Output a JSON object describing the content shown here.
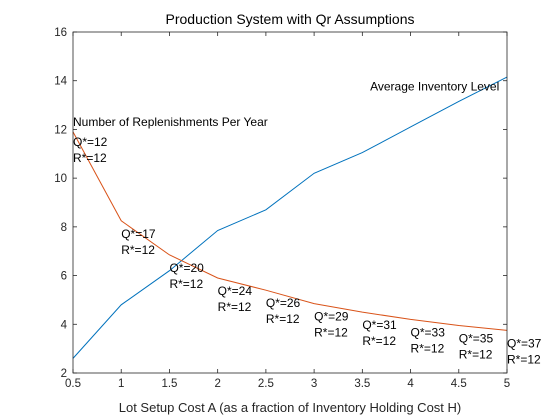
{
  "chart_data": {
    "type": "line",
    "title": "Production System with Qr Assumptions",
    "xlabel": "Lot Setup Cost A (as a fraction of Inventory Holding Cost H)",
    "ylabel": "",
    "xlim": [
      0.5,
      5
    ],
    "ylim": [
      2,
      16
    ],
    "xticks": [
      "0.5",
      "1",
      "1.5",
      "2",
      "2.5",
      "3",
      "3.5",
      "4",
      "4.5",
      "5"
    ],
    "yticks": [
      "2",
      "4",
      "6",
      "8",
      "10",
      "12",
      "14",
      "16"
    ],
    "grid": false,
    "x": [
      0.5,
      1,
      1.5,
      2,
      2.5,
      3,
      3.5,
      4,
      4.5,
      5
    ],
    "series": [
      {
        "name": "Average Inventory Level",
        "color": "#0072BD",
        "values": [
          2.6,
          4.8,
          6.2,
          7.85,
          8.7,
          10.2,
          11.05,
          12.1,
          13.15,
          14.15
        ]
      },
      {
        "name": "Number of Replenishments Per Year",
        "color": "#D95319",
        "values": [
          11.9,
          8.25,
          6.85,
          5.9,
          5.4,
          4.85,
          4.5,
          4.2,
          3.95,
          3.75
        ]
      }
    ],
    "annotations": [
      {
        "x": 0.5,
        "q": "Q*=12",
        "r": "R*=12"
      },
      {
        "x": 1.0,
        "q": "Q*=17",
        "r": "R*=12"
      },
      {
        "x": 1.5,
        "q": "Q*=20",
        "r": "R*=12"
      },
      {
        "x": 2.0,
        "q": "Q*=24",
        "r": "R*=12"
      },
      {
        "x": 2.5,
        "q": "Q*=26",
        "r": "R*=12"
      },
      {
        "x": 3.0,
        "q": "Q*=29",
        "r": "R*=12"
      },
      {
        "x": 3.5,
        "q": "Q*=31",
        "r": "R*=12"
      },
      {
        "x": 4.0,
        "q": "Q*=33",
        "r": "R*=12"
      },
      {
        "x": 4.5,
        "q": "Q*=35",
        "r": "R*=12"
      },
      {
        "x": 5.0,
        "q": "Q*=37",
        "r": "R*=12"
      }
    ]
  }
}
